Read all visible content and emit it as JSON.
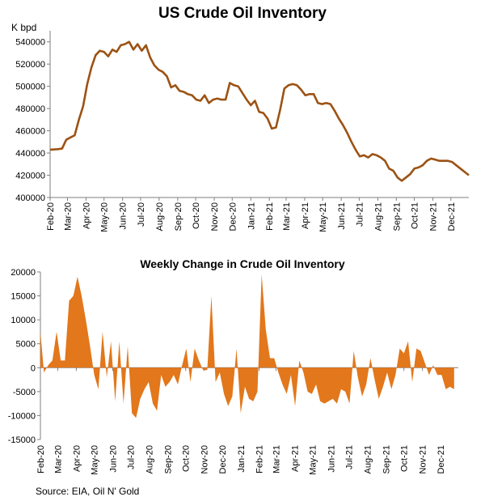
{
  "colors": {
    "line": "#9C5213",
    "area": "#E2771B",
    "axis": "#7f7f7f",
    "grid": "#bfbfbf"
  },
  "chart_data": [
    {
      "type": "line",
      "title": "US Crude Oil Inventory",
      "ylabel": "K bpd",
      "ylim": [
        400000,
        550000
      ],
      "yticks": [
        "400000",
        "420000",
        "440000",
        "460000",
        "480000",
        "500000",
        "520000",
        "540000"
      ],
      "xlim": [
        "2020-02-01",
        "2021-12-31"
      ],
      "month_labels": [
        "Feb-20",
        "Mar-20",
        "Apr-20",
        "May-20",
        "Jun-20",
        "Jul-20",
        "Aug-20",
        "Sep-20",
        "Oct-20",
        "Nov-20",
        "Dec-20",
        "Jan-21",
        "Feb-21",
        "Mar-21",
        "Apr-21",
        "May-21",
        "Jun-21",
        "Jul-21",
        "Aug-21",
        "Sep-21",
        "Oct-21",
        "Nov-21",
        "Dec-21"
      ],
      "grid": false,
      "series": [
        {
          "x": [
            "2020-02-01",
            "2020-02-14",
            "2020-02-21",
            "2020-02-28",
            "2020-03-06",
            "2020-03-13",
            "2020-03-20",
            "2020-03-27",
            "2020-04-03",
            "2020-04-10",
            "2020-04-17",
            "2020-04-24",
            "2020-05-01",
            "2020-05-08",
            "2020-05-15",
            "2020-05-22",
            "2020-05-29",
            "2020-06-05",
            "2020-06-12",
            "2020-06-19",
            "2020-06-26",
            "2020-07-03",
            "2020-07-10",
            "2020-07-17",
            "2020-07-24",
            "2020-07-31",
            "2020-08-07",
            "2020-08-14",
            "2020-08-21",
            "2020-08-28",
            "2020-09-04",
            "2020-09-11",
            "2020-09-18",
            "2020-09-25",
            "2020-10-02",
            "2020-10-09",
            "2020-10-16",
            "2020-10-23",
            "2020-10-30",
            "2020-11-06",
            "2020-11-13",
            "2020-11-20",
            "2020-11-27",
            "2020-12-04",
            "2020-12-11",
            "2020-12-18",
            "2020-12-25",
            "2021-01-01",
            "2021-01-08",
            "2021-01-15",
            "2021-01-22",
            "2021-01-29",
            "2021-02-05",
            "2021-02-12",
            "2021-02-19",
            "2021-02-26",
            "2021-03-05",
            "2021-03-12",
            "2021-03-19",
            "2021-03-26",
            "2021-04-02",
            "2021-04-09",
            "2021-04-16",
            "2021-04-23",
            "2021-04-30",
            "2021-05-07",
            "2021-05-14",
            "2021-05-21",
            "2021-05-28",
            "2021-06-04",
            "2021-06-11",
            "2021-06-18",
            "2021-06-25",
            "2021-07-02",
            "2021-07-09",
            "2021-07-16",
            "2021-07-23",
            "2021-07-30",
            "2021-08-06",
            "2021-08-13",
            "2021-08-20",
            "2021-08-27",
            "2021-09-03",
            "2021-09-10",
            "2021-09-17",
            "2021-09-24",
            "2021-10-01",
            "2021-10-08",
            "2021-10-15",
            "2021-10-22",
            "2021-10-29",
            "2021-11-05",
            "2021-11-12",
            "2021-11-19",
            "2021-11-26",
            "2021-12-03",
            "2021-12-10",
            "2021-12-17",
            "2021-12-24",
            "2021-12-31"
          ],
          "y": [
            443000,
            443500,
            444000,
            452000,
            454000,
            456000,
            470000,
            482000,
            502000,
            517000,
            528000,
            532000,
            531000,
            527000,
            533000,
            531000,
            537000,
            538000,
            540000,
            533000,
            538000,
            532000,
            537000,
            526000,
            519000,
            515000,
            513000,
            509000,
            499000,
            501000,
            496000,
            495000,
            493000,
            492000,
            488000,
            487000,
            492000,
            485000,
            488000,
            489000,
            488000,
            488000,
            503000,
            501000,
            500000,
            494000,
            488000,
            483000,
            487000,
            477000,
            476000,
            471000,
            462000,
            463000,
            479000,
            498000,
            501000,
            502000,
            501000,
            497000,
            492000,
            493000,
            493000,
            485000,
            484000,
            485000,
            484000,
            478000,
            471000,
            465000,
            458000,
            450000,
            443000,
            437000,
            438000,
            436000,
            439000,
            438000,
            436000,
            433000,
            426000,
            424000,
            418000,
            415000,
            418000,
            421000,
            426000,
            427000,
            429000,
            433000,
            435000,
            434000,
            433000,
            433000,
            433000,
            432000,
            429000,
            426000,
            423000,
            420000
          ]
        }
      ]
    },
    {
      "type": "area",
      "title": "Weekly Change in Crude Oil Inventory",
      "ylim": [
        -15000,
        20000
      ],
      "yticks": [
        "-15000",
        "-10000",
        "-5000",
        "0",
        "5000",
        "10000",
        "15000",
        "20000"
      ],
      "xlim": [
        "2020-02-01",
        "2021-12-31"
      ],
      "month_labels": [
        "Feb-20",
        "Mar-20",
        "Apr-20",
        "May-20",
        "Jun-20",
        "Jul-20",
        "Aug-20",
        "Sep-20",
        "Oct-20",
        "Nov-20",
        "Dec-20",
        "Jan-21",
        "Feb-21",
        "Mar-21",
        "Apr-21",
        "May-21",
        "Jun-21",
        "Jul-21",
        "Aug-21",
        "Sep-21",
        "Oct-21",
        "Nov-21",
        "Dec-21"
      ],
      "grid": false,
      "series": [
        {
          "x": [
            "2020-02-01",
            "2020-02-07",
            "2020-02-14",
            "2020-02-21",
            "2020-02-28",
            "2020-03-06",
            "2020-03-13",
            "2020-03-20",
            "2020-03-27",
            "2020-04-03",
            "2020-04-10",
            "2020-04-17",
            "2020-04-24",
            "2020-05-01",
            "2020-05-08",
            "2020-05-15",
            "2020-05-22",
            "2020-05-29",
            "2020-06-05",
            "2020-06-12",
            "2020-06-19",
            "2020-06-26",
            "2020-07-03",
            "2020-07-10",
            "2020-07-17",
            "2020-07-24",
            "2020-07-31",
            "2020-08-07",
            "2020-08-14",
            "2020-08-21",
            "2020-08-28",
            "2020-09-04",
            "2020-09-11",
            "2020-09-18",
            "2020-09-25",
            "2020-10-02",
            "2020-10-09",
            "2020-10-16",
            "2020-10-23",
            "2020-10-30",
            "2020-11-06",
            "2020-11-13",
            "2020-11-20",
            "2020-11-27",
            "2020-12-04",
            "2020-12-11",
            "2020-12-18",
            "2020-12-25",
            "2021-01-01",
            "2021-01-08",
            "2021-01-15",
            "2021-01-22",
            "2021-01-29",
            "2021-02-05",
            "2021-02-12",
            "2021-02-19",
            "2021-02-26",
            "2021-03-05",
            "2021-03-12",
            "2021-03-19",
            "2021-03-26",
            "2021-04-02",
            "2021-04-09",
            "2021-04-16",
            "2021-04-23",
            "2021-04-30",
            "2021-05-07",
            "2021-05-14",
            "2021-05-21",
            "2021-05-28",
            "2021-06-04",
            "2021-06-11",
            "2021-06-18",
            "2021-06-25",
            "2021-07-02",
            "2021-07-09",
            "2021-07-16",
            "2021-07-23",
            "2021-07-30",
            "2021-08-06",
            "2021-08-13",
            "2021-08-20",
            "2021-08-27",
            "2021-09-03",
            "2021-09-10",
            "2021-09-17",
            "2021-09-24",
            "2021-10-01",
            "2021-10-08",
            "2021-10-15",
            "2021-10-22",
            "2021-10-29",
            "2021-11-05",
            "2021-11-12",
            "2021-11-19",
            "2021-11-26",
            "2021-12-03",
            "2021-12-10",
            "2021-12-17",
            "2021-12-24"
          ],
          "y": [
            7500,
            -1000,
            500,
            1500,
            7500,
            1500,
            1500,
            14000,
            15000,
            19000,
            15000,
            10000,
            4500,
            -1500,
            -4500,
            7500,
            -2000,
            5500,
            -7000,
            5500,
            -7500,
            4500,
            -9500,
            -10500,
            -6500,
            -4500,
            -3000,
            -7500,
            -9000,
            -1500,
            -4000,
            -3000,
            -1500,
            -3500,
            500,
            4000,
            -3000,
            4000,
            1500,
            -500,
            -500,
            15000,
            -3000,
            -1000,
            -5500,
            -8000,
            -6000,
            4000,
            -9500,
            -4000,
            -6500,
            -7000,
            -5000,
            19500,
            8000,
            2000,
            2000,
            -1000,
            -3500,
            -5500,
            -1500,
            -8000,
            1500,
            -1000,
            -5000,
            -5500,
            -3500,
            -7000,
            -7500,
            -7000,
            -6500,
            -7500,
            -4500,
            -5000,
            -7500,
            3500,
            -2000,
            -6000,
            -3500,
            2000,
            -2500,
            -6500,
            -4000,
            -1000,
            -4500,
            -1500,
            4000,
            3000,
            5500,
            -3000,
            4000,
            3500,
            1000,
            -1500,
            500,
            -1500,
            -1500,
            -4500,
            -4000,
            -4500
          ]
        }
      ]
    }
  ],
  "source": "Source: EIA, Oil N' Gold"
}
